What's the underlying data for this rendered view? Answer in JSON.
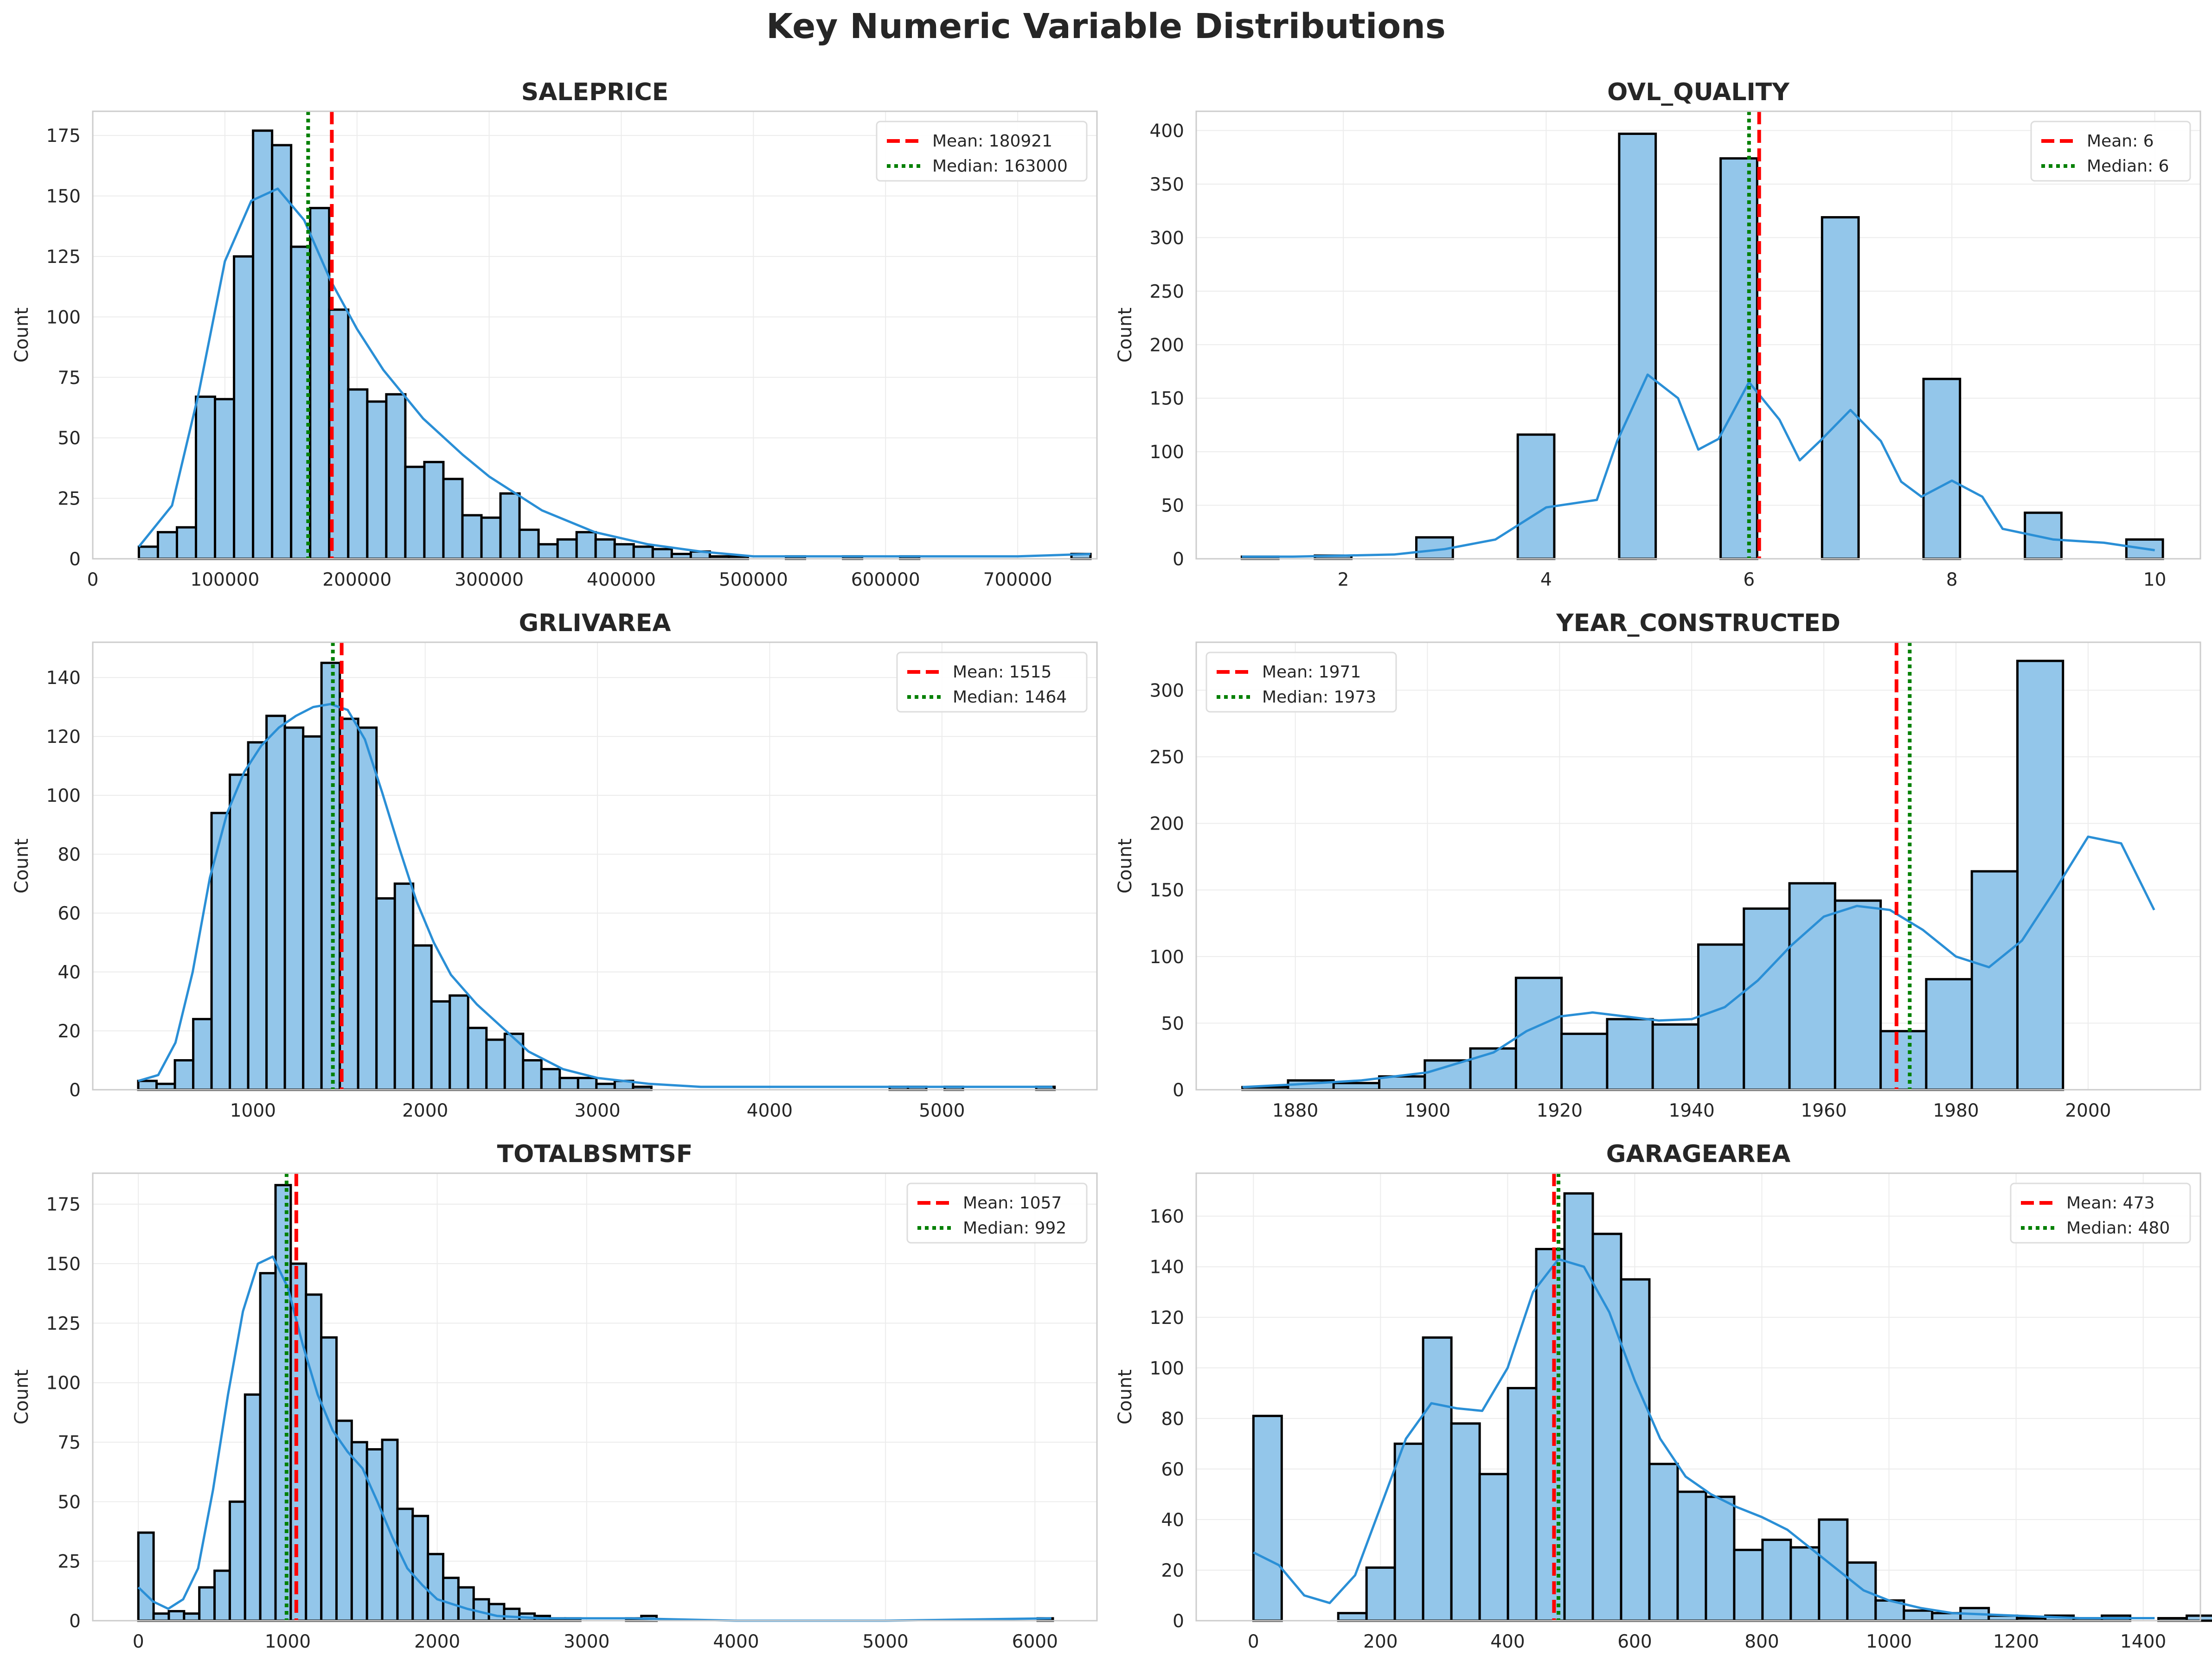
{
  "title": "Key Numeric Variable Distributions",
  "colors": {
    "bar": "#93c6ea",
    "bar_edge": "#000000",
    "kde": "#2a8fd6",
    "mean": "#ff0000",
    "median": "#008000",
    "grid": "#ececec",
    "axis": "#cccccc"
  },
  "chart_data": [
    {
      "type": "bar",
      "title": "SALEPRICE",
      "xlabel": "",
      "ylabel": "Count",
      "xlim": [
        0,
        760000
      ],
      "ylim": [
        0,
        185
      ],
      "xticks": [
        0,
        100000,
        200000,
        300000,
        400000,
        500000,
        600000,
        700000
      ],
      "xtick_labels": [
        "0",
        "100000",
        "200000",
        "300000",
        "400000",
        "500000",
        "600000",
        "700000"
      ],
      "yticks": [
        0,
        25,
        50,
        75,
        100,
        125,
        150,
        175
      ],
      "grid": true,
      "legend_position": "top-right",
      "bin_start": 34900,
      "bin_width": 14404,
      "counts": [
        5,
        11,
        13,
        67,
        66,
        125,
        177,
        171,
        129,
        145,
        103,
        70,
        65,
        68,
        38,
        40,
        33,
        18,
        17,
        27,
        12,
        6,
        8,
        11,
        8,
        6,
        5,
        4,
        2,
        3,
        1,
        1,
        0,
        0,
        1,
        0,
        0,
        1,
        0,
        0,
        1,
        0,
        0,
        0,
        0,
        0,
        0,
        0,
        0,
        2
      ],
      "kde_x": [
        34900,
        60000,
        80000,
        100000,
        120000,
        140000,
        160000,
        180000,
        200000,
        220000,
        250000,
        280000,
        300000,
        340000,
        380000,
        420000,
        460000,
        500000,
        560000,
        620000,
        700000,
        755000
      ],
      "kde_y": [
        5,
        22,
        68,
        123,
        148,
        153,
        140,
        115,
        95,
        78,
        58,
        43,
        34,
        20,
        11,
        6,
        3,
        1,
        1,
        1,
        1,
        2
      ],
      "lines": [
        {
          "kind": "mean",
          "label": "Mean: 180921",
          "x": 180921
        },
        {
          "kind": "median",
          "label": "Median: 163000",
          "x": 163000
        }
      ]
    },
    {
      "type": "bar",
      "title": "OVL_QUALITY",
      "xlabel": "",
      "ylabel": "Count",
      "xlim": [
        0.55,
        10.45
      ],
      "ylim": [
        0,
        418
      ],
      "xticks": [
        2,
        4,
        6,
        8,
        10
      ],
      "xtick_labels": [
        "2",
        "4",
        "6",
        "8",
        "10"
      ],
      "yticks": [
        0,
        50,
        100,
        150,
        200,
        250,
        300,
        350,
        400
      ],
      "grid": true,
      "legend_position": "top-right",
      "bins": [
        {
          "x0": 1,
          "x1": 1.36,
          "count": 2
        },
        {
          "x0": 1.72,
          "x1": 2.08,
          "count": 3
        },
        {
          "x0": 2.72,
          "x1": 3.08,
          "count": 20
        },
        {
          "x0": 3.72,
          "x1": 4.08,
          "count": 116
        },
        {
          "x0": 4.72,
          "x1": 5.08,
          "count": 397
        },
        {
          "x0": 5.72,
          "x1": 6.08,
          "count": 374
        },
        {
          "x0": 6.72,
          "x1": 7.08,
          "count": 319
        },
        {
          "x0": 7.72,
          "x1": 8.08,
          "count": 168
        },
        {
          "x0": 8.72,
          "x1": 9.08,
          "count": 43
        },
        {
          "x0": 9.72,
          "x1": 10.08,
          "count": 18
        }
      ],
      "kde_x": [
        1,
        1.5,
        2,
        2.5,
        3,
        3.5,
        4,
        4.5,
        4.7,
        5,
        5.3,
        5.5,
        5.7,
        6,
        6.3,
        6.5,
        6.7,
        7,
        7.3,
        7.5,
        7.7,
        8,
        8.3,
        8.5,
        9,
        9.5,
        10
      ],
      "kde_y": [
        2,
        2,
        3,
        4,
        9,
        18,
        48,
        55,
        110,
        172,
        150,
        102,
        112,
        165,
        130,
        92,
        110,
        139,
        110,
        72,
        58,
        73,
        58,
        28,
        18,
        15,
        8
      ],
      "lines": [
        {
          "kind": "mean",
          "label": "Mean: 6",
          "x": 6.1
        },
        {
          "kind": "median",
          "label": "Median: 6",
          "x": 6.0
        }
      ]
    },
    {
      "type": "bar",
      "title": "GRLIVAREA",
      "xlabel": "",
      "ylabel": "Count",
      "xlim": [
        70,
        5900
      ],
      "ylim": [
        0,
        152
      ],
      "xticks": [
        1000,
        2000,
        3000,
        4000,
        5000
      ],
      "xtick_labels": [
        "1000",
        "2000",
        "3000",
        "4000",
        "5000"
      ],
      "yticks": [
        0,
        20,
        40,
        60,
        80,
        100,
        120,
        140
      ],
      "grid": true,
      "legend_position": "top-right",
      "bin_start": 334,
      "bin_width": 106.4,
      "counts": [
        3,
        2,
        10,
        24,
        94,
        107,
        118,
        127,
        123,
        120,
        145,
        126,
        123,
        65,
        70,
        49,
        30,
        32,
        21,
        17,
        19,
        10,
        7,
        4,
        4,
        2,
        3,
        1,
        0,
        0,
        0,
        0,
        0,
        0,
        0,
        0,
        0,
        0,
        0,
        0,
        0,
        1,
        1,
        0,
        1,
        0,
        0,
        0,
        0,
        1
      ],
      "kde_x": [
        334,
        450,
        550,
        650,
        750,
        850,
        950,
        1050,
        1150,
        1250,
        1350,
        1450,
        1550,
        1650,
        1750,
        1850,
        1950,
        2050,
        2150,
        2300,
        2450,
        2600,
        2800,
        3000,
        3300,
        3600,
        4000,
        4500,
        5000,
        5642
      ],
      "kde_y": [
        3,
        5,
        16,
        40,
        72,
        94,
        108,
        117,
        123,
        127,
        130,
        131,
        129,
        119,
        101,
        82,
        64,
        50,
        39,
        29,
        21,
        13,
        7,
        4,
        2,
        1,
        1,
        1,
        1,
        1
      ],
      "lines": [
        {
          "kind": "mean",
          "label": "Mean: 1515",
          "x": 1515
        },
        {
          "kind": "median",
          "label": "Median: 1464",
          "x": 1464
        }
      ]
    },
    {
      "type": "bar",
      "title": "YEAR_CONSTRUCTED",
      "xlabel": "",
      "ylabel": "Count",
      "xlim": [
        1865,
        2017
      ],
      "ylim": [
        0,
        336
      ],
      "xticks": [
        1880,
        1900,
        1920,
        1940,
        1960,
        1980,
        2000
      ],
      "xtick_labels": [
        "1880",
        "1900",
        "1920",
        "1940",
        "1960",
        "1980",
        "2000"
      ],
      "yticks": [
        0,
        50,
        100,
        150,
        200,
        250,
        300
      ],
      "grid": true,
      "legend_position": "top-left",
      "bin_start": 1872,
      "bin_width": 6.9,
      "counts": [
        2,
        7,
        5,
        10,
        22,
        31,
        84,
        42,
        53,
        49,
        109,
        136,
        155,
        142,
        44,
        83,
        164,
        322
      ],
      "kde_x": [
        1872,
        1880,
        1890,
        1900,
        1910,
        1915,
        1920,
        1925,
        1930,
        1935,
        1940,
        1945,
        1950,
        1955,
        1960,
        1965,
        1970,
        1975,
        1980,
        1985,
        1990,
        1995,
        2000,
        2005,
        2010
      ],
      "kde_y": [
        2,
        4,
        7,
        13,
        28,
        44,
        55,
        58,
        55,
        52,
        53,
        62,
        82,
        108,
        130,
        138,
        135,
        120,
        100,
        92,
        112,
        150,
        190,
        185,
        135
      ],
      "lines": [
        {
          "kind": "mean",
          "label": "Mean: 1971",
          "x": 1971
        },
        {
          "kind": "median",
          "label": "Median: 1973",
          "x": 1973
        }
      ]
    },
    {
      "type": "bar",
      "title": "TOTALBSMTSF",
      "xlabel": "",
      "ylabel": "Count",
      "xlim": [
        -305,
        6415
      ],
      "ylim": [
        0,
        188
      ],
      "xticks": [
        0,
        1000,
        2000,
        3000,
        4000,
        5000,
        6000
      ],
      "xtick_labels": [
        "0",
        "1000",
        "2000",
        "3000",
        "4000",
        "5000",
        "6000"
      ],
      "yticks": [
        0,
        25,
        50,
        75,
        100,
        125,
        150,
        175
      ],
      "grid": true,
      "legend_position": "top-right",
      "bin_start": 0,
      "bin_width": 102,
      "counts": [
        37,
        3,
        4,
        3,
        14,
        21,
        50,
        95,
        146,
        183,
        150,
        137,
        119,
        84,
        75,
        72,
        76,
        47,
        44,
        28,
        18,
        14,
        9,
        7,
        5,
        3,
        2,
        1,
        1,
        0,
        0,
        0,
        1,
        2,
        0,
        0,
        0,
        0,
        0,
        0,
        0,
        0,
        0,
        0,
        0,
        0,
        0,
        0,
        0,
        0,
        0,
        0,
        0,
        0,
        0,
        0,
        0,
        0,
        0,
        1
      ],
      "kde_x": [
        0,
        100,
        200,
        300,
        400,
        500,
        600,
        700,
        800,
        900,
        1000,
        1100,
        1200,
        1300,
        1400,
        1500,
        1600,
        1700,
        1800,
        1900,
        2000,
        2200,
        2400,
        2700,
        3000,
        3300,
        4000,
        5000,
        6110
      ],
      "kde_y": [
        14,
        8,
        5,
        9,
        22,
        55,
        95,
        130,
        150,
        153,
        140,
        116,
        95,
        80,
        71,
        64,
        50,
        35,
        22,
        15,
        9,
        5,
        2,
        1,
        1,
        1,
        0,
        0,
        1
      ],
      "lines": [
        {
          "kind": "mean",
          "label": "Mean: 1057",
          "x": 1057
        },
        {
          "kind": "median",
          "label": "Median: 992",
          "x": 992
        }
      ]
    },
    {
      "type": "bar",
      "title": "GARAGEAREA",
      "xlabel": "",
      "ylabel": "Count",
      "xlim": [
        -90,
        1490
      ],
      "ylim": [
        0,
        177
      ],
      "xticks": [
        0,
        200,
        400,
        600,
        800,
        1000,
        1200,
        1400
      ],
      "xtick_labels": [
        "0",
        "200",
        "400",
        "600",
        "800",
        "1000",
        "1200",
        "1400"
      ],
      "yticks": [
        0,
        20,
        40,
        60,
        80,
        100,
        120,
        140,
        160
      ],
      "grid": true,
      "legend_position": "top-right",
      "bin_start": 0,
      "bin_width": 44.5,
      "counts": [
        81,
        0,
        0,
        3,
        21,
        70,
        112,
        78,
        58,
        92,
        147,
        169,
        153,
        135,
        62,
        51,
        49,
        28,
        32,
        29,
        40,
        23,
        8,
        4,
        3,
        5,
        2,
        1,
        2,
        1,
        2,
        0,
        1,
        2
      ],
      "kde_x": [
        0,
        40,
        80,
        120,
        160,
        200,
        240,
        280,
        320,
        360,
        400,
        440,
        480,
        520,
        560,
        600,
        640,
        680,
        720,
        760,
        800,
        840,
        880,
        920,
        960,
        1000,
        1050,
        1100,
        1200,
        1300,
        1418
      ],
      "kde_y": [
        27,
        22,
        10,
        7,
        18,
        45,
        72,
        86,
        84,
        83,
        100,
        130,
        143,
        140,
        122,
        95,
        72,
        57,
        50,
        45,
        41,
        36,
        28,
        20,
        12,
        8,
        5,
        3,
        2,
        1,
        1
      ],
      "lines": [
        {
          "kind": "mean",
          "label": "Mean: 473",
          "x": 473
        },
        {
          "kind": "median",
          "label": "Median: 480",
          "x": 480
        }
      ]
    }
  ]
}
